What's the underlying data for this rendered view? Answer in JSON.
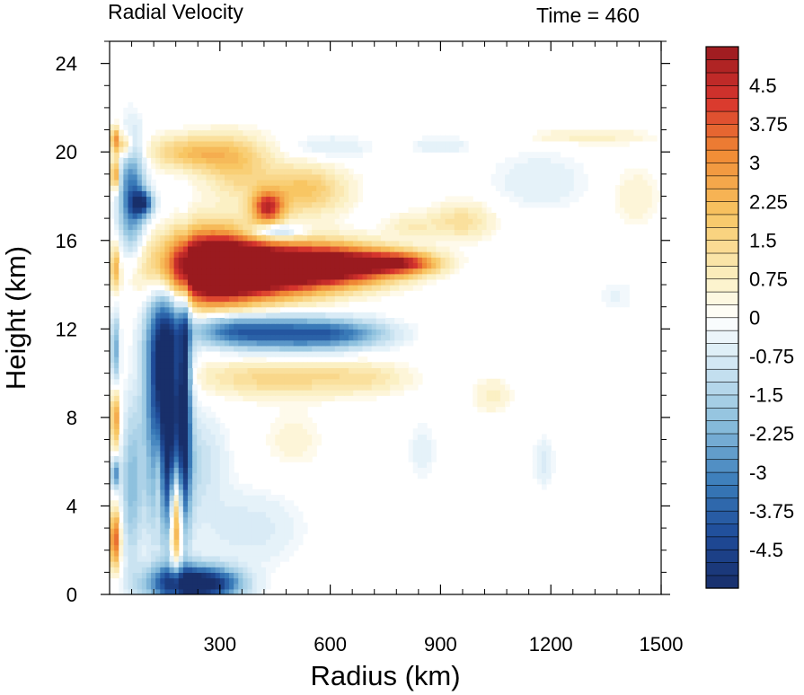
{
  "chart_data": {
    "type": "heatmap",
    "title_left": "Radial Velocity",
    "title_right": "Time = 460",
    "xlabel": "Radius (km)",
    "ylabel": "Height (km)",
    "xlim": [
      0,
      1500
    ],
    "ylim": [
      0,
      25
    ],
    "x_ticks": [
      300,
      600,
      900,
      1200,
      1500
    ],
    "x_tick_labels": [
      "300",
      "600",
      "900",
      "1200",
      "1500"
    ],
    "y_ticks": [
      0,
      4,
      8,
      12,
      16,
      20,
      24
    ],
    "y_tick_labels": [
      "0",
      "4",
      "8",
      "12",
      "16",
      "20",
      "24"
    ],
    "colorbar": {
      "min": -5.25,
      "max": 5.25,
      "step": 0.25,
      "tick_values": [
        4.5,
        3.75,
        3,
        2.25,
        1.5,
        0.75,
        0,
        -0.75,
        -1.5,
        -2.25,
        -3,
        -3.75,
        -4.5
      ],
      "tick_labels": [
        "4.5",
        "3.75",
        "3",
        "2.25",
        "1.5",
        "0.75",
        "0",
        "-0.75",
        "-1.5",
        "-2.25",
        "-3",
        "-3.75",
        "-4.5"
      ],
      "colors": [
        "#182f6a",
        "#1f4c9a",
        "#3a7cba",
        "#8ec1de",
        "#d6eaf5",
        "#ffffff",
        "#fbefc0",
        "#f8c663",
        "#f08a34",
        "#d8352e",
        "#9a1a1f"
      ],
      "color_values": [
        -5.25,
        -4.2,
        -3.2,
        -2.0,
        -0.8,
        0,
        0.8,
        2.0,
        3.2,
        4.2,
        5.25
      ]
    },
    "features": [
      {
        "x": 270,
        "y": 14.8,
        "sx": 100,
        "sy": 1.15,
        "v": 7
      },
      {
        "x": 440,
        "y": 14.7,
        "sx": 130,
        "sy": 0.85,
        "v": 6
      },
      {
        "x": 640,
        "y": 14.9,
        "sx": 110,
        "sy": 0.6,
        "v": 5
      },
      {
        "x": 800,
        "y": 15.0,
        "sx": 70,
        "sy": 0.35,
        "v": 3.5
      },
      {
        "x": 150,
        "y": 10.5,
        "sx": 35,
        "sy": 2.6,
        "v": -6
      },
      {
        "x": 160,
        "y": 5.5,
        "sx": 35,
        "sy": 2.5,
        "v": -4.5
      },
      {
        "x": 180,
        "y": 3.6,
        "sx": 12,
        "sy": 1.8,
        "v": 5
      },
      {
        "x": 135,
        "y": 5.5,
        "sx": 10,
        "sy": 2.0,
        "v": 2.5
      },
      {
        "x": 205,
        "y": 9.0,
        "sx": 10,
        "sy": 3.5,
        "v": -4
      },
      {
        "x": 500,
        "y": 11.8,
        "sx": 130,
        "sy": 0.55,
        "v": -3.5
      },
      {
        "x": 330,
        "y": 12.0,
        "sx": 80,
        "sy": 0.5,
        "v": -2.5
      },
      {
        "x": 650,
        "y": 11.8,
        "sx": 90,
        "sy": 0.4,
        "v": -1.5
      },
      {
        "x": 450,
        "y": 9.8,
        "sx": 160,
        "sy": 0.6,
        "v": 1.5
      },
      {
        "x": 700,
        "y": 9.8,
        "sx": 90,
        "sy": 0.5,
        "v": 0.8
      },
      {
        "x": 60,
        "y": 18.0,
        "sx": 25,
        "sy": 1.8,
        "v": -3.5
      },
      {
        "x": 90,
        "y": 17.7,
        "sx": 20,
        "sy": 0.4,
        "v": -4
      },
      {
        "x": 15,
        "y": 19.0,
        "sx": 8,
        "sy": 0.5,
        "v": 3.5
      },
      {
        "x": 15,
        "y": 20.6,
        "sx": 8,
        "sy": 0.4,
        "v": 3
      },
      {
        "x": 40,
        "y": 20.3,
        "sx": 15,
        "sy": 0.4,
        "v": 2
      },
      {
        "x": 230,
        "y": 20.0,
        "sx": 90,
        "sy": 0.55,
        "v": 2
      },
      {
        "x": 350,
        "y": 19.3,
        "sx": 70,
        "sy": 1.0,
        "v": 1.5
      },
      {
        "x": 430,
        "y": 17.5,
        "sx": 30,
        "sy": 0.5,
        "v": 4
      },
      {
        "x": 530,
        "y": 18.3,
        "sx": 80,
        "sy": 0.8,
        "v": 2
      },
      {
        "x": 450,
        "y": 16.4,
        "sx": 50,
        "sy": 0.25,
        "v": -2.5
      },
      {
        "x": 960,
        "y": 16.9,
        "sx": 60,
        "sy": 0.6,
        "v": 1.3
      },
      {
        "x": 820,
        "y": 16.7,
        "sx": 50,
        "sy": 0.4,
        "v": 0.8
      },
      {
        "x": 1300,
        "y": 20.7,
        "sx": 120,
        "sy": 0.25,
        "v": 0.8
      },
      {
        "x": 1430,
        "y": 18.0,
        "sx": 50,
        "sy": 1.0,
        "v": 0.6
      },
      {
        "x": 1170,
        "y": 18.7,
        "sx": 100,
        "sy": 1.0,
        "v": -0.6
      },
      {
        "x": 900,
        "y": 20.3,
        "sx": 60,
        "sy": 0.3,
        "v": -0.6
      },
      {
        "x": 600,
        "y": 20.2,
        "sx": 80,
        "sy": 0.4,
        "v": -0.7
      },
      {
        "x": 15,
        "y": 14.8,
        "sx": 8,
        "sy": 0.7,
        "v": 2.5
      },
      {
        "x": 15,
        "y": 8.0,
        "sx": 8,
        "sy": 1.0,
        "v": 3
      },
      {
        "x": 15,
        "y": 5.5,
        "sx": 8,
        "sy": 0.5,
        "v": -3
      },
      {
        "x": 15,
        "y": 2.5,
        "sx": 10,
        "sy": 0.9,
        "v": 4
      },
      {
        "x": 15,
        "y": 11.0,
        "sx": 8,
        "sy": 1.2,
        "v": -2.5
      },
      {
        "x": 60,
        "y": 5.0,
        "sx": 20,
        "sy": 2.5,
        "v": -2
      },
      {
        "x": 200,
        "y": 0.5,
        "sx": 70,
        "sy": 0.6,
        "v": -5
      },
      {
        "x": 290,
        "y": 0.5,
        "sx": 60,
        "sy": 0.5,
        "v": -3
      },
      {
        "x": 380,
        "y": 3.0,
        "sx": 100,
        "sy": 1.2,
        "v": -0.8
      },
      {
        "x": 250,
        "y": 6.0,
        "sx": 50,
        "sy": 1.5,
        "v": -1
      },
      {
        "x": 1040,
        "y": 9.0,
        "sx": 40,
        "sy": 0.6,
        "v": 0.7
      },
      {
        "x": 1180,
        "y": 6.0,
        "sx": 20,
        "sy": 0.8,
        "v": -0.7
      },
      {
        "x": 1380,
        "y": 13.5,
        "sx": 40,
        "sy": 0.6,
        "v": -0.4
      },
      {
        "x": 850,
        "y": 6.5,
        "sx": 30,
        "sy": 1.0,
        "v": -0.5
      },
      {
        "x": 500,
        "y": 7.0,
        "sx": 60,
        "sy": 1.0,
        "v": 0.5
      }
    ]
  }
}
